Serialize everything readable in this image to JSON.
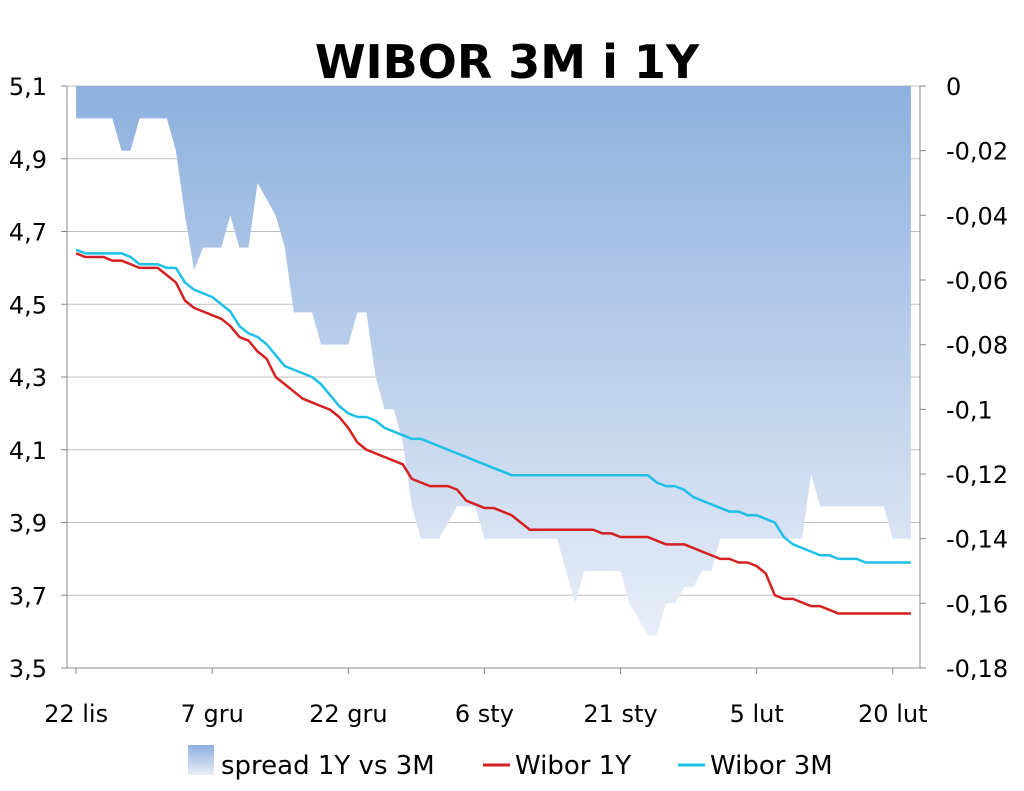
{
  "chart_data": {
    "type": "line",
    "title": "WIBOR 3M i 1Y",
    "x_tick_labels": [
      "22 lis",
      "7 gru",
      "22 gru",
      "6 sty",
      "21 sty",
      "5 lut",
      "20 lut"
    ],
    "x_ticks_at_day": [
      0,
      15,
      30,
      45,
      60,
      75,
      90
    ],
    "xlim": [
      -1,
      93
    ],
    "y_left": {
      "ylim": [
        3.5,
        5.1
      ],
      "ticks": [
        "3,5",
        "3,7",
        "3,9",
        "4,1",
        "4,3",
        "4,5",
        "4,7",
        "4,9",
        "5,1"
      ],
      "tick_values": [
        3.5,
        3.7,
        3.9,
        4.1,
        4.3,
        4.5,
        4.7,
        4.9,
        5.1
      ]
    },
    "y_right": {
      "ylim": [
        -0.18,
        0
      ],
      "ticks": [
        "0",
        "-0,02",
        "-0,04",
        "-0,06",
        "-0,08",
        "-0,1",
        "-0,12",
        "-0,14",
        "-0,16",
        "-0,18"
      ],
      "tick_values": [
        0,
        -0.02,
        -0.04,
        -0.06,
        -0.08,
        -0.1,
        -0.12,
        -0.14,
        -0.16,
        -0.18
      ]
    },
    "grid": "horizontal",
    "legend_position": "bottom",
    "series": [
      {
        "name": "spread 1Y vs 3M",
        "kind": "area",
        "axis": "right",
        "color_top": "#8eb0de",
        "color_bottom": "#e8eef8",
        "x": [
          0,
          1,
          2,
          3,
          4,
          5,
          6,
          7,
          8,
          9,
          10,
          11,
          12,
          13,
          14,
          15,
          16,
          17,
          18,
          19,
          20,
          21,
          22,
          23,
          24,
          25,
          26,
          27,
          28,
          29,
          30,
          31,
          32,
          33,
          34,
          35,
          36,
          37,
          38,
          39,
          40,
          41,
          42,
          43,
          44,
          45,
          46,
          47,
          48,
          49,
          50,
          51,
          52,
          53,
          54,
          55,
          56,
          57,
          58,
          59,
          60,
          61,
          62,
          63,
          64,
          65,
          66,
          67,
          68,
          69,
          70,
          71,
          72,
          73,
          74,
          75,
          76,
          77,
          78,
          79,
          80,
          81,
          82,
          83,
          84,
          85,
          86,
          87,
          88,
          89,
          90,
          91,
          92
        ],
        "values": [
          -0.01,
          -0.01,
          -0.01,
          -0.01,
          -0.01,
          -0.02,
          -0.02,
          -0.01,
          -0.01,
          -0.01,
          -0.01,
          -0.02,
          -0.04,
          -0.057,
          -0.05,
          -0.05,
          -0.05,
          -0.04,
          -0.05,
          -0.05,
          -0.03,
          -0.035,
          -0.04,
          -0.05,
          -0.07,
          -0.07,
          -0.07,
          -0.08,
          -0.08,
          -0.08,
          -0.08,
          -0.07,
          -0.07,
          -0.09,
          -0.1,
          -0.1,
          -0.11,
          -0.13,
          -0.14,
          -0.14,
          -0.14,
          -0.135,
          -0.13,
          -0.13,
          -0.13,
          -0.14,
          -0.14,
          -0.14,
          -0.14,
          -0.14,
          -0.14,
          -0.14,
          -0.14,
          -0.14,
          -0.15,
          -0.16,
          -0.15,
          -0.15,
          -0.15,
          -0.15,
          -0.15,
          -0.16,
          -0.165,
          -0.17,
          -0.17,
          -0.16,
          -0.16,
          -0.155,
          -0.155,
          -0.15,
          -0.15,
          -0.14,
          -0.14,
          -0.14,
          -0.14,
          -0.14,
          -0.14,
          -0.14,
          -0.14,
          -0.14,
          -0.14,
          -0.12,
          -0.13,
          -0.13,
          -0.13,
          -0.13,
          -0.13,
          -0.13,
          -0.13,
          -0.13,
          -0.14,
          -0.14,
          -0.14
        ]
      },
      {
        "name": "Wibor 1Y",
        "kind": "line",
        "axis": "left",
        "color": "#d42020",
        "x": [
          0,
          1,
          2,
          3,
          4,
          5,
          6,
          7,
          8,
          9,
          10,
          11,
          12,
          13,
          14,
          15,
          16,
          17,
          18,
          19,
          20,
          21,
          22,
          23,
          24,
          25,
          26,
          27,
          28,
          29,
          30,
          31,
          32,
          33,
          34,
          35,
          36,
          37,
          38,
          39,
          40,
          41,
          42,
          43,
          44,
          45,
          46,
          47,
          48,
          49,
          50,
          51,
          52,
          53,
          54,
          55,
          56,
          57,
          58,
          59,
          60,
          61,
          62,
          63,
          64,
          65,
          66,
          67,
          68,
          69,
          70,
          71,
          72,
          73,
          74,
          75,
          76,
          77,
          78,
          79,
          80,
          81,
          82,
          83,
          84,
          85,
          86,
          87,
          88,
          89,
          90,
          91,
          92
        ],
        "values": [
          4.64,
          4.63,
          4.63,
          4.63,
          4.62,
          4.62,
          4.61,
          4.6,
          4.6,
          4.6,
          4.58,
          4.56,
          4.51,
          4.49,
          4.48,
          4.47,
          4.46,
          4.44,
          4.41,
          4.4,
          4.37,
          4.35,
          4.3,
          4.28,
          4.26,
          4.24,
          4.23,
          4.22,
          4.21,
          4.19,
          4.16,
          4.12,
          4.1,
          4.09,
          4.08,
          4.07,
          4.06,
          4.02,
          4.01,
          4.0,
          4.0,
          4.0,
          3.99,
          3.96,
          3.95,
          3.94,
          3.94,
          3.93,
          3.92,
          3.9,
          3.88,
          3.88,
          3.88,
          3.88,
          3.88,
          3.88,
          3.88,
          3.88,
          3.87,
          3.87,
          3.86,
          3.86,
          3.86,
          3.86,
          3.85,
          3.84,
          3.84,
          3.84,
          3.83,
          3.82,
          3.81,
          3.8,
          3.8,
          3.79,
          3.79,
          3.78,
          3.76,
          3.7,
          3.69,
          3.69,
          3.68,
          3.67,
          3.67,
          3.66,
          3.65,
          3.65,
          3.65,
          3.65,
          3.65,
          3.65,
          3.65,
          3.65,
          3.65
        ]
      },
      {
        "name": "Wibor 3M",
        "kind": "line",
        "axis": "left",
        "color": "#1ec0e8",
        "x": [
          0,
          1,
          2,
          3,
          4,
          5,
          6,
          7,
          8,
          9,
          10,
          11,
          12,
          13,
          14,
          15,
          16,
          17,
          18,
          19,
          20,
          21,
          22,
          23,
          24,
          25,
          26,
          27,
          28,
          29,
          30,
          31,
          32,
          33,
          34,
          35,
          36,
          37,
          38,
          39,
          40,
          41,
          42,
          43,
          44,
          45,
          46,
          47,
          48,
          49,
          50,
          51,
          52,
          53,
          54,
          55,
          56,
          57,
          58,
          59,
          60,
          61,
          62,
          63,
          64,
          65,
          66,
          67,
          68,
          69,
          70,
          71,
          72,
          73,
          74,
          75,
          76,
          77,
          78,
          79,
          80,
          81,
          82,
          83,
          84,
          85,
          86,
          87,
          88,
          89,
          90,
          91,
          92
        ],
        "values": [
          4.65,
          4.64,
          4.64,
          4.64,
          4.64,
          4.64,
          4.63,
          4.61,
          4.61,
          4.61,
          4.6,
          4.6,
          4.56,
          4.54,
          4.53,
          4.52,
          4.5,
          4.48,
          4.44,
          4.42,
          4.41,
          4.39,
          4.36,
          4.33,
          4.32,
          4.31,
          4.3,
          4.28,
          4.25,
          4.22,
          4.2,
          4.19,
          4.19,
          4.18,
          4.16,
          4.15,
          4.14,
          4.13,
          4.13,
          4.12,
          4.11,
          4.1,
          4.09,
          4.08,
          4.07,
          4.06,
          4.05,
          4.04,
          4.03,
          4.03,
          4.03,
          4.03,
          4.03,
          4.03,
          4.03,
          4.03,
          4.03,
          4.03,
          4.03,
          4.03,
          4.03,
          4.03,
          4.03,
          4.03,
          4.01,
          4.0,
          4.0,
          3.99,
          3.97,
          3.96,
          3.95,
          3.94,
          3.93,
          3.93,
          3.92,
          3.92,
          3.91,
          3.9,
          3.86,
          3.84,
          3.83,
          3.82,
          3.81,
          3.81,
          3.8,
          3.8,
          3.8,
          3.79,
          3.79,
          3.79,
          3.79,
          3.79,
          3.79
        ]
      }
    ]
  }
}
